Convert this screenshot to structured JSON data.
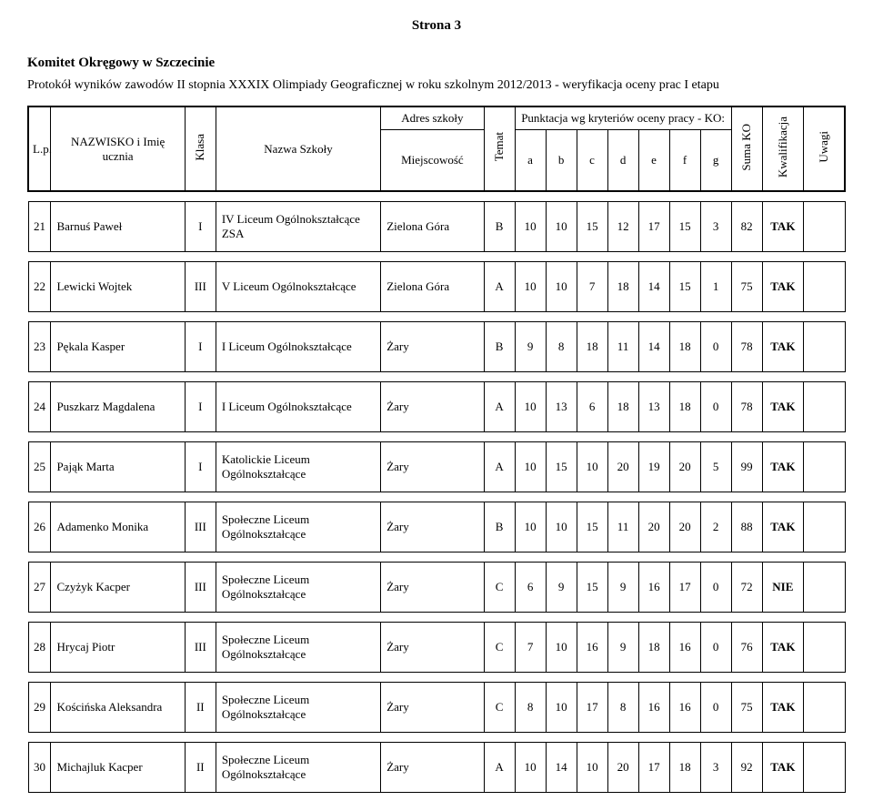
{
  "page_label": "Strona 3",
  "committee": "Komitet Okręgowy w Szczecinie",
  "subtitle": "Protokół wyników zawodów II stopnia XXXIX Olimpiady Geograficznej w roku szkolnym 2012/2013 - weryfikacja oceny prac I etapu",
  "headers": {
    "lp": "L.p.",
    "name": "NAZWISKO i Imię ucznia",
    "klasa": "Klasa",
    "school": "Nazwa Szkoły",
    "addr": "Adres szkoły",
    "city": "Miejscowość",
    "temat": "Temat",
    "punktacja": "Punktacja wg kryteriów oceny pracy - KO:",
    "crits": [
      "a",
      "b",
      "c",
      "d",
      "e",
      "f",
      "g"
    ],
    "suma": "Suma KO",
    "kwal": "Kwalifikacja",
    "uwagi": "Uwagi"
  },
  "rows": [
    {
      "lp": "21",
      "name": "Barnuś Paweł",
      "klasa": "I",
      "school": "IV Liceum Ogólnokształcące ZSA",
      "city": "Zielona Góra",
      "temat": "B",
      "a": "10",
      "b": "10",
      "c": "15",
      "d": "12",
      "e": "17",
      "f": "15",
      "g": "3",
      "suma": "82",
      "kwal": "TAK",
      "uwagi": ""
    },
    {
      "lp": "22",
      "name": "Lewicki Wojtek",
      "klasa": "III",
      "school": "V Liceum Ogólnokształcące",
      "city": "Zielona Góra",
      "temat": "A",
      "a": "10",
      "b": "10",
      "c": "7",
      "d": "18",
      "e": "14",
      "f": "15",
      "g": "1",
      "suma": "75",
      "kwal": "TAK",
      "uwagi": ""
    },
    {
      "lp": "23",
      "name": "Pękala Kasper",
      "klasa": "I",
      "school": "I Liceum Ogólnokształcące",
      "city": "Żary",
      "temat": "B",
      "a": "9",
      "b": "8",
      "c": "18",
      "d": "11",
      "e": "14",
      "f": "18",
      "g": "0",
      "suma": "78",
      "kwal": "TAK",
      "uwagi": ""
    },
    {
      "lp": "24",
      "name": "Puszkarz Magdalena",
      "klasa": "I",
      "school": "I Liceum Ogólnokształcące",
      "city": "Żary",
      "temat": "A",
      "a": "10",
      "b": "13",
      "c": "6",
      "d": "18",
      "e": "13",
      "f": "18",
      "g": "0",
      "suma": "78",
      "kwal": "TAK",
      "uwagi": ""
    },
    {
      "lp": "25",
      "name": "Pająk Marta",
      "klasa": "I",
      "school": "Katolickie Liceum Ogólnokształcące",
      "city": "Żary",
      "temat": "A",
      "a": "10",
      "b": "15",
      "c": "10",
      "d": "20",
      "e": "19",
      "f": "20",
      "g": "5",
      "suma": "99",
      "kwal": "TAK",
      "uwagi": ""
    },
    {
      "lp": "26",
      "name": "Adamenko Monika",
      "klasa": "III",
      "school": "Społeczne Liceum Ogólnokształcące",
      "city": "Żary",
      "temat": "B",
      "a": "10",
      "b": "10",
      "c": "15",
      "d": "11",
      "e": "20",
      "f": "20",
      "g": "2",
      "suma": "88",
      "kwal": "TAK",
      "uwagi": ""
    },
    {
      "lp": "27",
      "name": "Czyżyk Kacper",
      "klasa": "III",
      "school": "Społeczne Liceum Ogólnokształcące",
      "city": "Żary",
      "temat": "C",
      "a": "6",
      "b": "9",
      "c": "15",
      "d": "9",
      "e": "16",
      "f": "17",
      "g": "0",
      "suma": "72",
      "kwal": "NIE",
      "uwagi": ""
    },
    {
      "lp": "28",
      "name": "Hrycaj Piotr",
      "klasa": "III",
      "school": "Społeczne Liceum Ogólnokształcące",
      "city": "Żary",
      "temat": "C",
      "a": "7",
      "b": "10",
      "c": "16",
      "d": "9",
      "e": "18",
      "f": "16",
      "g": "0",
      "suma": "76",
      "kwal": "TAK",
      "uwagi": ""
    },
    {
      "lp": "29",
      "name": "Kościńska Aleksandra",
      "klasa": "II",
      "school": "Społeczne Liceum Ogólnokształcące",
      "city": "Żary",
      "temat": "C",
      "a": "8",
      "b": "10",
      "c": "17",
      "d": "8",
      "e": "16",
      "f": "16",
      "g": "0",
      "suma": "75",
      "kwal": "TAK",
      "uwagi": ""
    },
    {
      "lp": "30",
      "name": "Michajluk Kacper",
      "klasa": "II",
      "school": "Społeczne Liceum Ogólnokształcące",
      "city": "Żary",
      "temat": "A",
      "a": "10",
      "b": "14",
      "c": "10",
      "d": "20",
      "e": "17",
      "f": "18",
      "g": "3",
      "suma": "92",
      "kwal": "TAK",
      "uwagi": ""
    }
  ]
}
